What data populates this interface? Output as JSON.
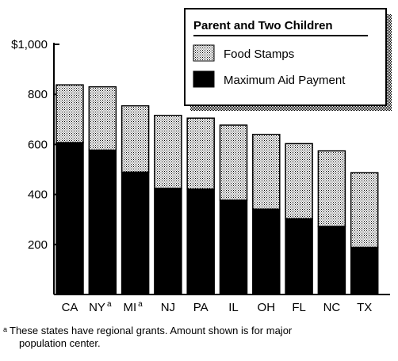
{
  "chart_data": {
    "type": "bar",
    "stacked": true,
    "categories": [
      "CA",
      "NY",
      "MI",
      "NJ",
      "PA",
      "IL",
      "OH",
      "FL",
      "NC",
      "TX"
    ],
    "category_superscripts": [
      "",
      "a",
      "a",
      "",
      "",
      "",
      "",
      "",
      "",
      ""
    ],
    "series": [
      {
        "name": "Maximum Aid Payment",
        "color": "#000000",
        "pattern": "solid",
        "values": [
          607,
          577,
          489,
          424,
          421,
          377,
          341,
          303,
          272,
          188
        ]
      },
      {
        "name": "Food Stamps",
        "color": "#9a9a9a",
        "pattern": "dotted",
        "values": [
          231,
          253,
          265,
          292,
          284,
          300,
          299,
          300,
          302,
          299
        ]
      }
    ],
    "totals": [
      838,
      830,
      754,
      716,
      705,
      677,
      640,
      603,
      574,
      487
    ],
    "yticks": [
      200,
      400,
      600,
      800,
      1000
    ],
    "ytick_labels": [
      "200",
      "400",
      "600",
      "800",
      "$1,000"
    ],
    "ylim": [
      0,
      1000
    ],
    "legend_title": "Parent and Two Children",
    "legend_position": "top-right",
    "legend_order": [
      "Food Stamps",
      "Maximum Aid Payment"
    ],
    "grid": false
  },
  "footnote": {
    "mark": "a",
    "line1": "These states have regional grants. Amount shown is for major",
    "line2": "population center."
  }
}
